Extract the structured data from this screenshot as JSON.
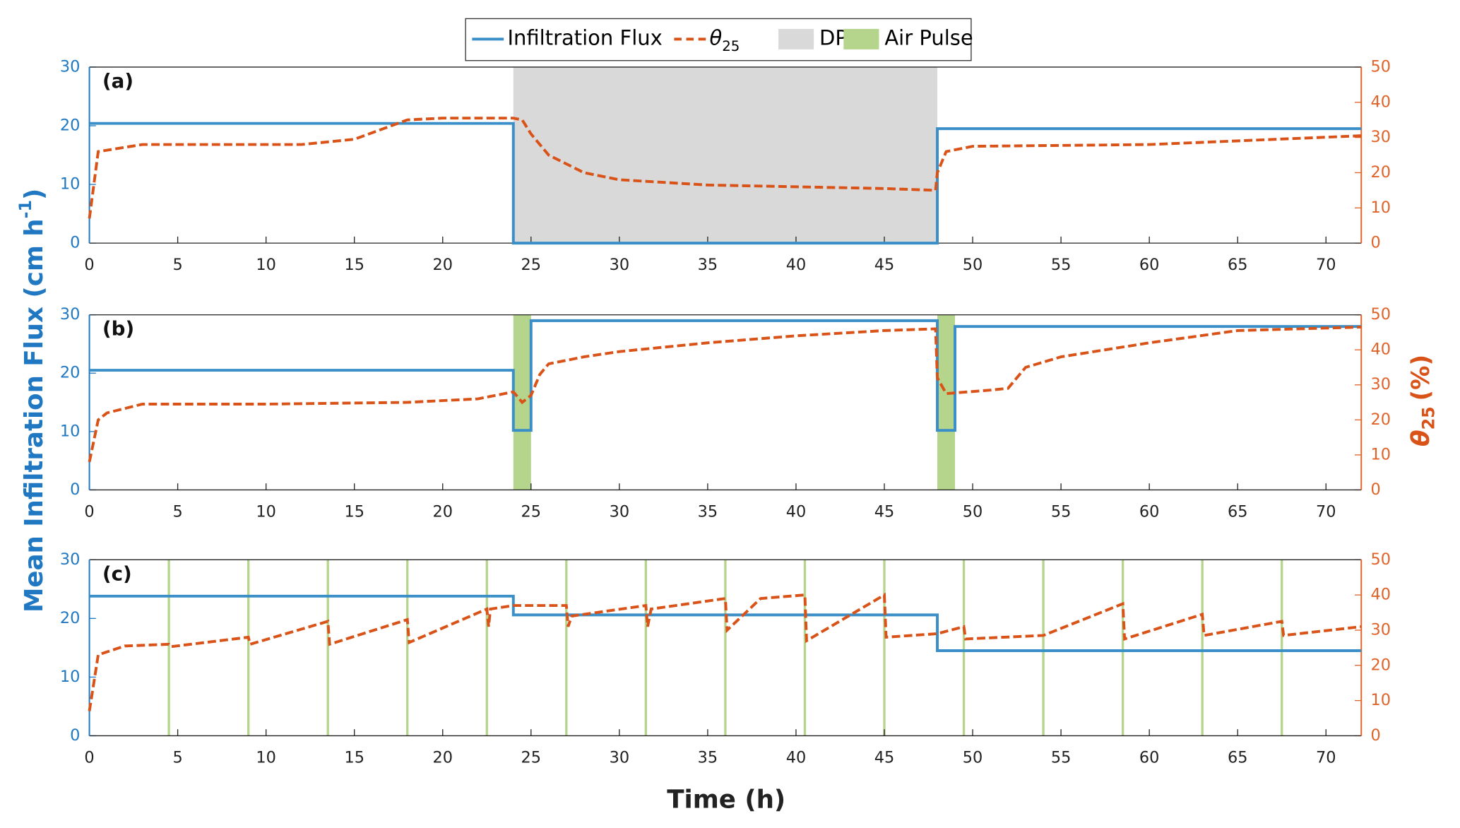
{
  "legend": {
    "items": [
      {
        "name": "Infiltration Flux",
        "color": "#3a8fc8",
        "style": "solid"
      },
      {
        "name": {
          "symbol": "θ",
          "subscript": "25"
        },
        "color": "#d95319",
        "style": "dashed"
      },
      {
        "name": "DP",
        "color": "#d9d9d9",
        "style": "patch"
      },
      {
        "name": "Air Pulse",
        "color": "#b5d48c",
        "style": "patch"
      }
    ]
  },
  "ylabel": {
    "text": "Mean Infiltration Flux (cm h",
    "superscript": "-1",
    "end": ")"
  },
  "y2label": {
    "symbol": "θ",
    "subscript": "25",
    "text": "(%)"
  },
  "xlabel": "Time (h)",
  "chart_data": [
    {
      "type": "line",
      "label": "(a)",
      "xlim": [
        0,
        72
      ],
      "xticks": [
        0,
        5,
        10,
        15,
        20,
        25,
        30,
        35,
        40,
        45,
        50,
        55,
        60,
        65,
        70
      ],
      "ylim": [
        0,
        30
      ],
      "yticks": [
        0,
        10,
        20,
        30
      ],
      "y2lim": [
        0,
        50
      ],
      "y2ticks": [
        0,
        10,
        20,
        30,
        40,
        50
      ],
      "regions": [
        [
          24,
          48
        ]
      ],
      "region_color": "#d9d9d9",
      "series": [
        {
          "color": "#3a8fc8",
          "style": "solid",
          "x": [
            0,
            24,
            24,
            48,
            48,
            72
          ],
          "values": [
            20.4,
            20.4,
            0,
            0,
            19.5,
            19.5
          ]
        },
        {
          "color": "#d95319",
          "style": "dashed",
          "axis": "y2",
          "x": [
            0,
            0.5,
            3,
            12,
            15,
            18,
            20,
            24,
            24.5,
            25,
            26,
            28,
            30,
            35,
            40,
            45,
            47.9,
            48,
            48.5,
            50,
            60,
            72
          ],
          "values": [
            7,
            26,
            28,
            28,
            29.5,
            35,
            35.5,
            35.5,
            35,
            31,
            25,
            20,
            18,
            16.5,
            16,
            15.5,
            15,
            20,
            26,
            27.5,
            28,
            30.5
          ]
        }
      ]
    },
    {
      "type": "line",
      "label": "(b)",
      "xlim": [
        0,
        72
      ],
      "xticks": [
        0,
        5,
        10,
        15,
        20,
        25,
        30,
        35,
        40,
        45,
        50,
        55,
        60,
        65,
        70
      ],
      "ylim": [
        0,
        30
      ],
      "yticks": [
        0,
        10,
        20,
        30
      ],
      "y2lim": [
        0,
        50
      ],
      "y2ticks": [
        0,
        10,
        20,
        30,
        40,
        50
      ],
      "regions": [
        [
          24,
          25
        ],
        [
          48,
          49
        ]
      ],
      "region_color": "#b5d48c",
      "series": [
        {
          "color": "#3a8fc8",
          "style": "solid",
          "x": [
            0,
            24,
            24,
            25,
            25,
            48,
            48,
            49,
            49,
            72
          ],
          "values": [
            20.5,
            20.5,
            10.2,
            10.2,
            29,
            29,
            10.2,
            10.2,
            28,
            28
          ]
        },
        {
          "color": "#d95319",
          "style": "dashed",
          "axis": "y2",
          "x": [
            0,
            0.5,
            1,
            3,
            10,
            18,
            22,
            24,
            24.5,
            25,
            25.5,
            26,
            28,
            30,
            35,
            40,
            45,
            47.9,
            48,
            48.5,
            51,
            52,
            53,
            55,
            60,
            65,
            72
          ],
          "values": [
            8,
            20,
            22,
            24.5,
            24.5,
            25,
            26,
            28,
            25,
            27,
            33,
            36,
            38,
            39.5,
            42,
            44,
            45.5,
            46,
            32,
            27.5,
            28.5,
            29,
            35,
            38,
            42,
            45.5,
            46.5
          ]
        }
      ]
    },
    {
      "type": "line",
      "label": "(c)",
      "xlim": [
        0,
        72
      ],
      "xticks": [
        0,
        5,
        10,
        15,
        20,
        25,
        30,
        35,
        40,
        45,
        50,
        55,
        60,
        65,
        70
      ],
      "ylim": [
        0,
        30
      ],
      "yticks": [
        0,
        10,
        20,
        30
      ],
      "y2lim": [
        0,
        50
      ],
      "y2ticks": [
        0,
        10,
        20,
        30,
        40,
        50
      ],
      "pulses": [
        4.5,
        9,
        13.5,
        18,
        22.5,
        27,
        31.5,
        36,
        40.5,
        45,
        49.5,
        54,
        58.5,
        63,
        67.5
      ],
      "pulse_color": "#b5d48c",
      "series": [
        {
          "color": "#3a8fc8",
          "style": "solid",
          "x": [
            0,
            24,
            24,
            48,
            48,
            72
          ],
          "values": [
            23.8,
            23.8,
            20.6,
            20.6,
            14.5,
            14.5
          ]
        },
        {
          "color": "#d95319",
          "style": "dashed",
          "axis": "y2",
          "x": [
            0,
            0.5,
            2,
            4.5,
            4.6,
            9,
            9.1,
            13.5,
            13.6,
            18,
            18.1,
            22.5,
            22.6,
            22.7,
            24,
            27,
            27.1,
            27.3,
            31.5,
            31.6,
            31.8,
            36,
            36.1,
            38,
            40.5,
            40.6,
            45,
            45.1,
            48,
            49.5,
            49.6,
            54,
            58.5,
            58.6,
            63,
            63.1,
            67.5,
            67.6,
            72
          ],
          "values": [
            7,
            23,
            25.5,
            26,
            25.3,
            28,
            26,
            32.5,
            26,
            33,
            26.5,
            36,
            31,
            36,
            37,
            37,
            31,
            34,
            37,
            31,
            36,
            39,
            30,
            39,
            40,
            27,
            40,
            28,
            29,
            31,
            27.5,
            28.5,
            37.5,
            27.5,
            34.5,
            28.5,
            32.5,
            28.5,
            31
          ]
        }
      ]
    }
  ]
}
